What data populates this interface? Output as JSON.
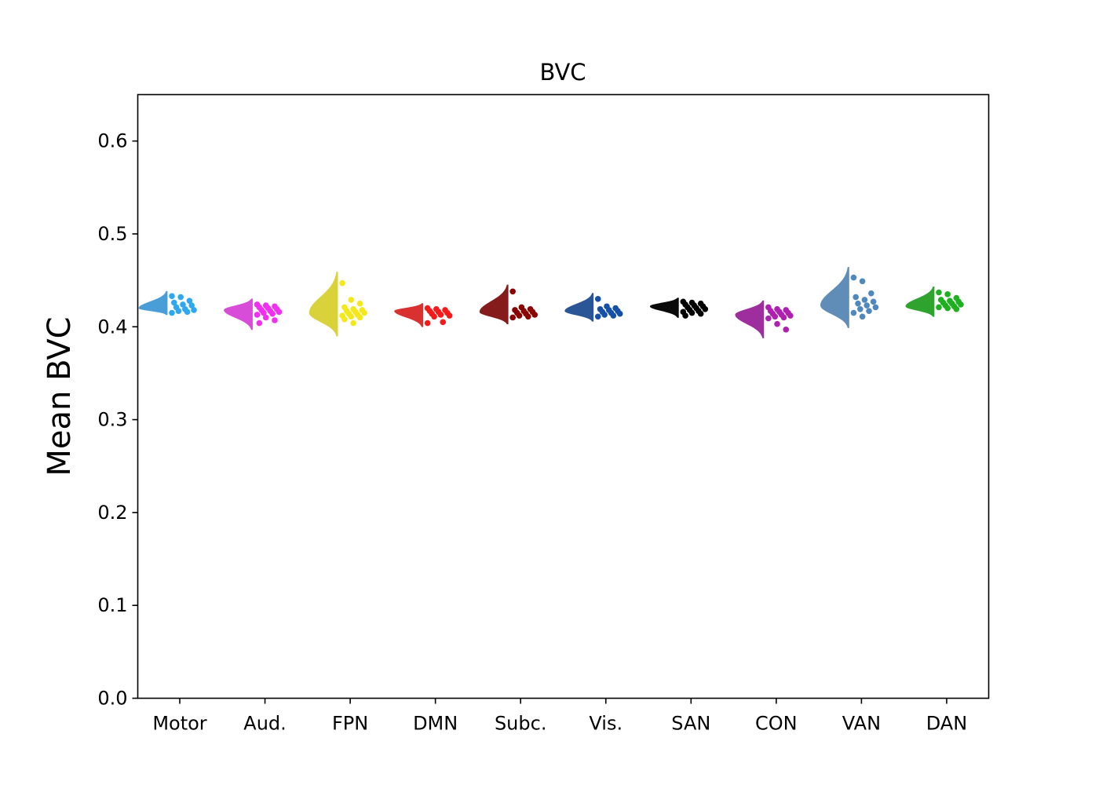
{
  "chart_data": {
    "type": "raincloud",
    "title": "BVC",
    "xlabel": "",
    "ylabel": "Mean BVC",
    "ylim": [
      0.0,
      0.65
    ],
    "yticks": [
      "0.0",
      "0.1",
      "0.2",
      "0.3",
      "0.4",
      "0.5",
      "0.6"
    ],
    "grid": false,
    "legend": "none",
    "categories": [
      "Motor",
      "Aud.",
      "FPN",
      "DMN",
      "Subc.",
      "Vis.",
      "SAN",
      "CON",
      "VAN",
      "DAN"
    ],
    "series": [
      {
        "category": "Motor",
        "color": "#4a9ed8",
        "point_color": "#2fa8f0",
        "density": {
          "min": 0.413,
          "max": 0.438,
          "peak": 0.42
        },
        "points": [
          0.433,
          0.432,
          0.428,
          0.426,
          0.424,
          0.423,
          0.421,
          0.419,
          0.418,
          0.417,
          0.416,
          0.415
        ]
      },
      {
        "category": "Aud.",
        "color": "#d84dd8",
        "point_color": "#f02ff0",
        "density": {
          "min": 0.397,
          "max": 0.43,
          "peak": 0.418
        },
        "points": [
          0.424,
          0.423,
          0.422,
          0.421,
          0.42,
          0.419,
          0.418,
          0.417,
          0.416,
          0.415,
          0.414,
          0.413,
          0.41,
          0.407,
          0.404
        ]
      },
      {
        "category": "FPN",
        "color": "#d9d23a",
        "point_color": "#f5e81a",
        "density": {
          "min": 0.39,
          "max": 0.459,
          "peak": 0.415
        },
        "points": [
          0.447,
          0.429,
          0.425,
          0.421,
          0.419,
          0.418,
          0.417,
          0.416,
          0.415,
          0.414,
          0.413,
          0.412,
          0.411,
          0.41,
          0.408,
          0.404
        ]
      },
      {
        "category": "DMN",
        "color": "#d93030",
        "point_color": "#f51a1a",
        "density": {
          "min": 0.4,
          "max": 0.425,
          "peak": 0.417
        },
        "points": [
          0.42,
          0.419,
          0.418,
          0.417,
          0.416,
          0.415,
          0.414,
          0.413,
          0.412,
          0.411,
          0.405,
          0.404
        ]
      },
      {
        "category": "Subc.",
        "color": "#851b1b",
        "point_color": "#8b0000",
        "density": {
          "min": 0.403,
          "max": 0.445,
          "peak": 0.416
        },
        "points": [
          0.438,
          0.421,
          0.419,
          0.418,
          0.417,
          0.416,
          0.415,
          0.414,
          0.413,
          0.412,
          0.411,
          0.41
        ]
      },
      {
        "category": "Vis.",
        "color": "#2a5597",
        "point_color": "#1550a8",
        "density": {
          "min": 0.406,
          "max": 0.436,
          "peak": 0.417
        },
        "points": [
          0.43,
          0.422,
          0.42,
          0.419,
          0.418,
          0.417,
          0.416,
          0.415,
          0.414,
          0.413,
          0.412,
          0.411
        ]
      },
      {
        "category": "SAN",
        "color": "#0a0a0a",
        "point_color": "#000000",
        "density": {
          "min": 0.41,
          "max": 0.431,
          "peak": 0.422
        },
        "points": [
          0.427,
          0.426,
          0.425,
          0.424,
          0.423,
          0.422,
          0.421,
          0.42,
          0.419,
          0.418,
          0.417,
          0.416,
          0.415,
          0.414,
          0.412
        ]
      },
      {
        "category": "CON",
        "color": "#9e2e9e",
        "point_color": "#b020b0",
        "density": {
          "min": 0.388,
          "max": 0.428,
          "peak": 0.413
        },
        "points": [
          0.421,
          0.419,
          0.418,
          0.417,
          0.416,
          0.415,
          0.414,
          0.413,
          0.412,
          0.411,
          0.41,
          0.409,
          0.403,
          0.397
        ]
      },
      {
        "category": "VAN",
        "color": "#5f8db8",
        "point_color": "#4f88be",
        "density": {
          "min": 0.399,
          "max": 0.464,
          "peak": 0.423
        },
        "points": [
          0.453,
          0.449,
          0.436,
          0.432,
          0.429,
          0.427,
          0.425,
          0.423,
          0.421,
          0.419,
          0.417,
          0.415,
          0.411
        ]
      },
      {
        "category": "DAN",
        "color": "#2ea32e",
        "point_color": "#1fb01f",
        "density": {
          "min": 0.411,
          "max": 0.443,
          "peak": 0.422
        },
        "points": [
          0.437,
          0.435,
          0.431,
          0.429,
          0.428,
          0.427,
          0.426,
          0.425,
          0.424,
          0.423,
          0.422,
          0.421,
          0.42,
          0.419
        ]
      }
    ]
  }
}
